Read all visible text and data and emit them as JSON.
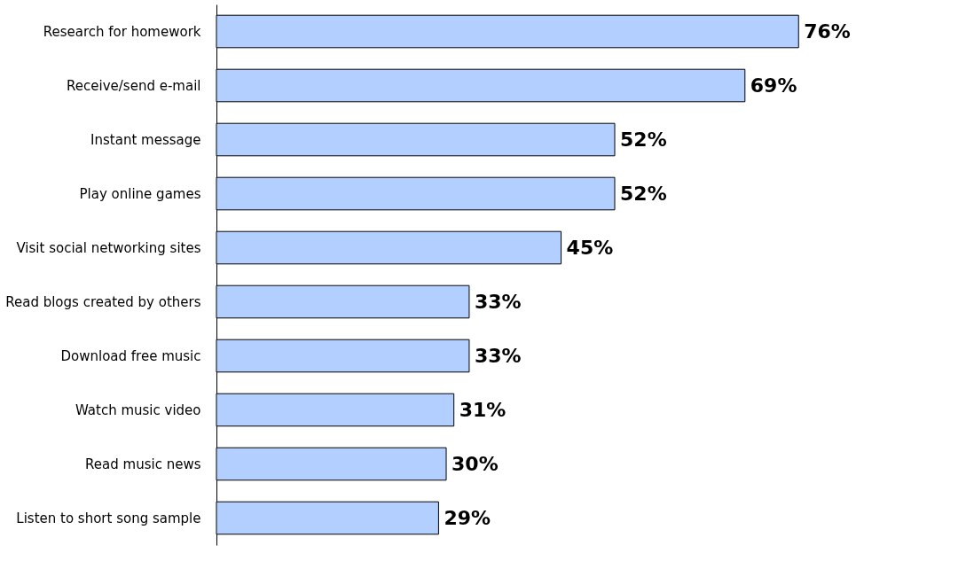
{
  "chart_data": {
    "type": "bar",
    "orientation": "horizontal",
    "categories": [
      "Research for homework",
      "Receive/send e-mail",
      "Instant message",
      "Play online games",
      "Visit social networking sites",
      "Read blogs created by others",
      "Download free music",
      "Watch music video",
      "Read music news",
      "Listen to short song sample"
    ],
    "values": [
      76,
      69,
      52,
      52,
      45,
      33,
      33,
      31,
      30,
      29
    ],
    "value_labels": [
      "76%",
      "69%",
      "52%",
      "52%",
      "45%",
      "33%",
      "33%",
      "31%",
      "30%",
      "29%"
    ],
    "color": "#b3cfff"
  }
}
